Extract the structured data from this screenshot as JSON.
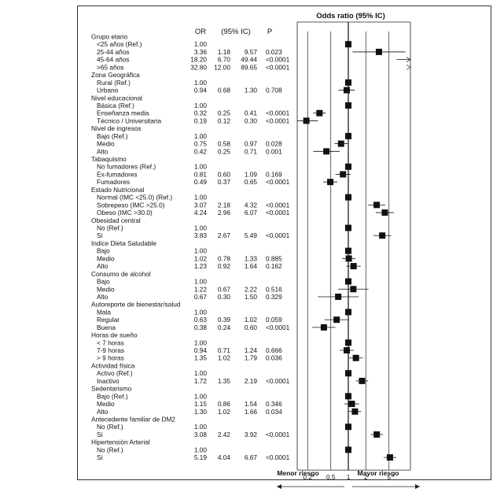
{
  "chart_data": {
    "type": "forest",
    "title": "Odds ratio (95% IC)",
    "columns": [
      "OR",
      "(95% IC)",
      "P"
    ],
    "x_axis": {
      "scale": "log",
      "ticks": [
        0.2,
        0.5,
        1,
        2,
        5
      ],
      "tick_labels": [
        "0.2",
        "0.5",
        "1",
        "2",
        "5"
      ],
      "reference_line": 1
    },
    "legend": {
      "left": "Menor riesgo",
      "right": "Mayor riesgo"
    },
    "rows": [
      {
        "label": "Grupo etario",
        "header": true
      },
      {
        "label": "<25 años (Ref.)",
        "or": "1.00",
        "lo": "",
        "hi": "",
        "p": "",
        "v": 1,
        "l": null,
        "h": null
      },
      {
        "label": "25-44 años",
        "or": "3.36",
        "lo": "1.18",
        "hi": "9.57",
        "p": "0.023",
        "v": 3.36,
        "l": 1.18,
        "h": 9.57
      },
      {
        "label": "45-64 años",
        "or": "18.20",
        "lo": "6.70",
        "hi": "49.44",
        "p": "<0.0001",
        "v": 18.2,
        "l": 6.7,
        "h": 49.44
      },
      {
        "label": ">65 años",
        "or": "32.80",
        "lo": "12.00",
        "hi": "89.65",
        "p": "<0.0001",
        "v": 32.8,
        "l": 12.0,
        "h": 89.65
      },
      {
        "label": "Zona Geográfica",
        "header": true
      },
      {
        "label": "Rural (Ref.)",
        "or": "1.00",
        "lo": "",
        "hi": "",
        "p": "",
        "v": 1,
        "l": null,
        "h": null
      },
      {
        "label": "Urbano",
        "or": "0.94",
        "lo": "0.68",
        "hi": "1.30",
        "p": "0.708",
        "v": 0.94,
        "l": 0.68,
        "h": 1.3
      },
      {
        "label": "Nivel educacional",
        "header": true
      },
      {
        "label": "Básica (Ref.)",
        "or": "1.00",
        "lo": "",
        "hi": "",
        "p": "",
        "v": 1,
        "l": null,
        "h": null
      },
      {
        "label": "Enseñanza media",
        "or": "0.32",
        "lo": "0.25",
        "hi": "0.41",
        "p": "<0.0001",
        "v": 0.32,
        "l": 0.25,
        "h": 0.41
      },
      {
        "label": "Técnico / Universitaria",
        "or": "0.19",
        "lo": "0.12",
        "hi": "0.30",
        "p": "<0.0001",
        "v": 0.19,
        "l": 0.12,
        "h": 0.3
      },
      {
        "label": "Nivel de ingresos",
        "header": true
      },
      {
        "label": "Bajo (Ref.)",
        "or": "1.00",
        "lo": "",
        "hi": "",
        "p": "",
        "v": 1,
        "l": null,
        "h": null
      },
      {
        "label": "Medio",
        "or": "0.75",
        "lo": "0.58",
        "hi": "0.97",
        "p": "0.028",
        "v": 0.75,
        "l": 0.58,
        "h": 0.97
      },
      {
        "label": "Alto",
        "or": "0.42",
        "lo": "0.25",
        "hi": "0.71",
        "p": "0.001",
        "v": 0.42,
        "l": 0.25,
        "h": 0.71
      },
      {
        "label": "Tabaquismo",
        "header": true
      },
      {
        "label": "No fumadores (Ref.)",
        "or": "1.00",
        "lo": "",
        "hi": "",
        "p": "",
        "v": 1,
        "l": null,
        "h": null
      },
      {
        "label": "Ex-fumadores",
        "or": "0.81",
        "lo": "0.60",
        "hi": "1.09",
        "p": "0.169",
        "v": 0.81,
        "l": 0.6,
        "h": 1.09
      },
      {
        "label": "Fumadores",
        "or": "0.49",
        "lo": "0.37",
        "hi": "0.65",
        "p": "<0.0001",
        "v": 0.49,
        "l": 0.37,
        "h": 0.65
      },
      {
        "label": "Estado Nutricional",
        "header": true
      },
      {
        "label": "Normal (IMC <25.0) (Ref.)",
        "or": "1.00",
        "lo": "",
        "hi": "",
        "p": "",
        "v": 1,
        "l": null,
        "h": null
      },
      {
        "label": "Sobrepeso (IMC >25.0)",
        "or": "3.07",
        "lo": "2.18",
        "hi": "4.32",
        "p": "<0.0001",
        "v": 3.07,
        "l": 2.18,
        "h": 4.32
      },
      {
        "label": "Obeso (IMC >30.0)",
        "or": "4.24",
        "lo": "2.96",
        "hi": "6.07",
        "p": "<0.0001",
        "v": 4.24,
        "l": 2.96,
        "h": 6.07
      },
      {
        "label": "Obesidad central",
        "header": true
      },
      {
        "label": "No (Ref.)",
        "or": "1.00",
        "lo": "",
        "hi": "",
        "p": "",
        "v": 1,
        "l": null,
        "h": null
      },
      {
        "label": "Si",
        "or": "3.83",
        "lo": "2.67",
        "hi": "5.49",
        "p": "<0.0001",
        "v": 3.83,
        "l": 2.67,
        "h": 5.49
      },
      {
        "label": "Indice Dieta Saludable",
        "header": true
      },
      {
        "label": "Bajo",
        "or": "1.00",
        "lo": "",
        "hi": "",
        "p": "",
        "v": 1,
        "l": null,
        "h": null
      },
      {
        "label": "Medio",
        "or": "1.02",
        "lo": "0.78",
        "hi": "1.33",
        "p": "0.885",
        "v": 1.02,
        "l": 0.78,
        "h": 1.33
      },
      {
        "label": "Alto",
        "or": "1.23",
        "lo": "0.92",
        "hi": "1.64",
        "p": "0.162",
        "v": 1.23,
        "l": 0.92,
        "h": 1.64
      },
      {
        "label": "Consumo de alcohol",
        "header": true
      },
      {
        "label": "Bajo",
        "or": "1.00",
        "lo": "",
        "hi": "",
        "p": "",
        "v": 1,
        "l": null,
        "h": null
      },
      {
        "label": "Medio",
        "or": "1.22",
        "lo": "0.67",
        "hi": "2.22",
        "p": "0.516",
        "v": 1.22,
        "l": 0.67,
        "h": 2.22
      },
      {
        "label": "Alto",
        "or": "0.67",
        "lo": "0.30",
        "hi": "1.50",
        "p": "0.329",
        "v": 0.67,
        "l": 0.3,
        "h": 1.5
      },
      {
        "label": "Autoreporte de bienestar/salud",
        "header": true
      },
      {
        "label": "Mala",
        "or": "1.00",
        "lo": "",
        "hi": "",
        "p": "",
        "v": 1,
        "l": null,
        "h": null
      },
      {
        "label": "Regular",
        "or": "0.63",
        "lo": "0.39",
        "hi": "1.02",
        "p": "0.059",
        "v": 0.63,
        "l": 0.39,
        "h": 1.02
      },
      {
        "label": "Buena",
        "or": "0.38",
        "lo": "0.24",
        "hi": "0.60",
        "p": "<0.0001",
        "v": 0.38,
        "l": 0.24,
        "h": 0.6
      },
      {
        "label": "Horas de sueño",
        "header": true
      },
      {
        "label": "< 7 horas",
        "or": "1.00",
        "lo": "",
        "hi": "",
        "p": "",
        "v": 1,
        "l": null,
        "h": null
      },
      {
        "label": "7-9 horas",
        "or": "0.94",
        "lo": "0.71",
        "hi": "1.24",
        "p": "0.666",
        "v": 0.94,
        "l": 0.71,
        "h": 1.24
      },
      {
        "label": "> 9 horas",
        "or": "1.35",
        "lo": "1.02",
        "hi": "1.79",
        "p": "0.036",
        "v": 1.35,
        "l": 1.02,
        "h": 1.79
      },
      {
        "label": "Actividad física",
        "header": true
      },
      {
        "label": "Activo (Ref.)",
        "or": "1.00",
        "lo": "",
        "hi": "",
        "p": "",
        "v": 1,
        "l": null,
        "h": null
      },
      {
        "label": "Inactivo",
        "or": "1.72",
        "lo": "1.35",
        "hi": "2.19",
        "p": "<0.0001",
        "v": 1.72,
        "l": 1.35,
        "h": 2.19
      },
      {
        "label": "Sedentarismo",
        "header": true
      },
      {
        "label": "Bajo (Ref.)",
        "or": "1.00",
        "lo": "",
        "hi": "",
        "p": "",
        "v": 1,
        "l": null,
        "h": null
      },
      {
        "label": "Medio",
        "or": "1.15",
        "lo": "0.86",
        "hi": "1.54",
        "p": "0.346",
        "v": 1.15,
        "l": 0.86,
        "h": 1.54
      },
      {
        "label": "Alto",
        "or": "1.30",
        "lo": "1.02",
        "hi": "1.66",
        "p": "0.034",
        "v": 1.3,
        "l": 1.02,
        "h": 1.66
      },
      {
        "label": "Antecedente familiar de DM2",
        "header": true
      },
      {
        "label": "No (Ref.)",
        "or": "1.00",
        "lo": "",
        "hi": "",
        "p": "",
        "v": 1,
        "l": null,
        "h": null
      },
      {
        "label": "Si",
        "or": "3.08",
        "lo": "2.42",
        "hi": "3.92",
        "p": "<0.0001",
        "v": 3.08,
        "l": 2.42,
        "h": 3.92
      },
      {
        "label": "Hipertensión Arterial",
        "header": true
      },
      {
        "label": "No (Ref.)",
        "or": "1.00",
        "lo": "",
        "hi": "",
        "p": "",
        "v": 1,
        "l": null,
        "h": null
      },
      {
        "label": "Si",
        "or": "5.19",
        "lo": "4.04",
        "hi": "6.67",
        "p": "<0.0001",
        "v": 5.19,
        "l": 4.04,
        "h": 6.67
      }
    ]
  }
}
